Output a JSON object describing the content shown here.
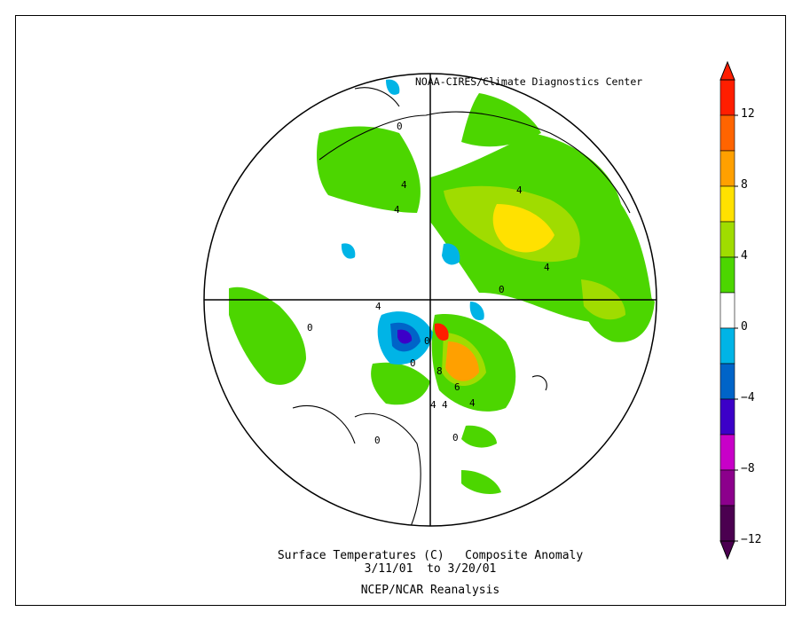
{
  "credit": "NOAA-CIRES/Climate Diagnostics Center",
  "title": "Surface Temperatures (C)   Composite Anomaly",
  "date_range": "3/11/01  to 3/20/01",
  "source": "NCEP/NCAR Reanalysis",
  "colorbar": {
    "levels": [
      -14,
      -12,
      -10,
      -8,
      -6,
      -4,
      -2,
      2,
      4,
      6,
      8,
      10,
      12,
      14
    ],
    "colors": [
      "#4b0050",
      "#8c008c",
      "#c800c8",
      "#3c00c8",
      "#0064c8",
      "#00b4e6",
      "#ffffff",
      "#4cd600",
      "#a0dc00",
      "#ffe100",
      "#ffa000",
      "#ff6400",
      "#ff1e00"
    ],
    "tick_labels": [
      "12",
      "8",
      "4",
      "0",
      "−4",
      "−8",
      "−12"
    ]
  },
  "map_contour_labels": [
    "0",
    "4",
    "4",
    "4",
    "4",
    "0",
    "4",
    "4",
    "0",
    "0",
    "8",
    "6",
    "4",
    "4",
    "0",
    "0",
    "0"
  ]
}
